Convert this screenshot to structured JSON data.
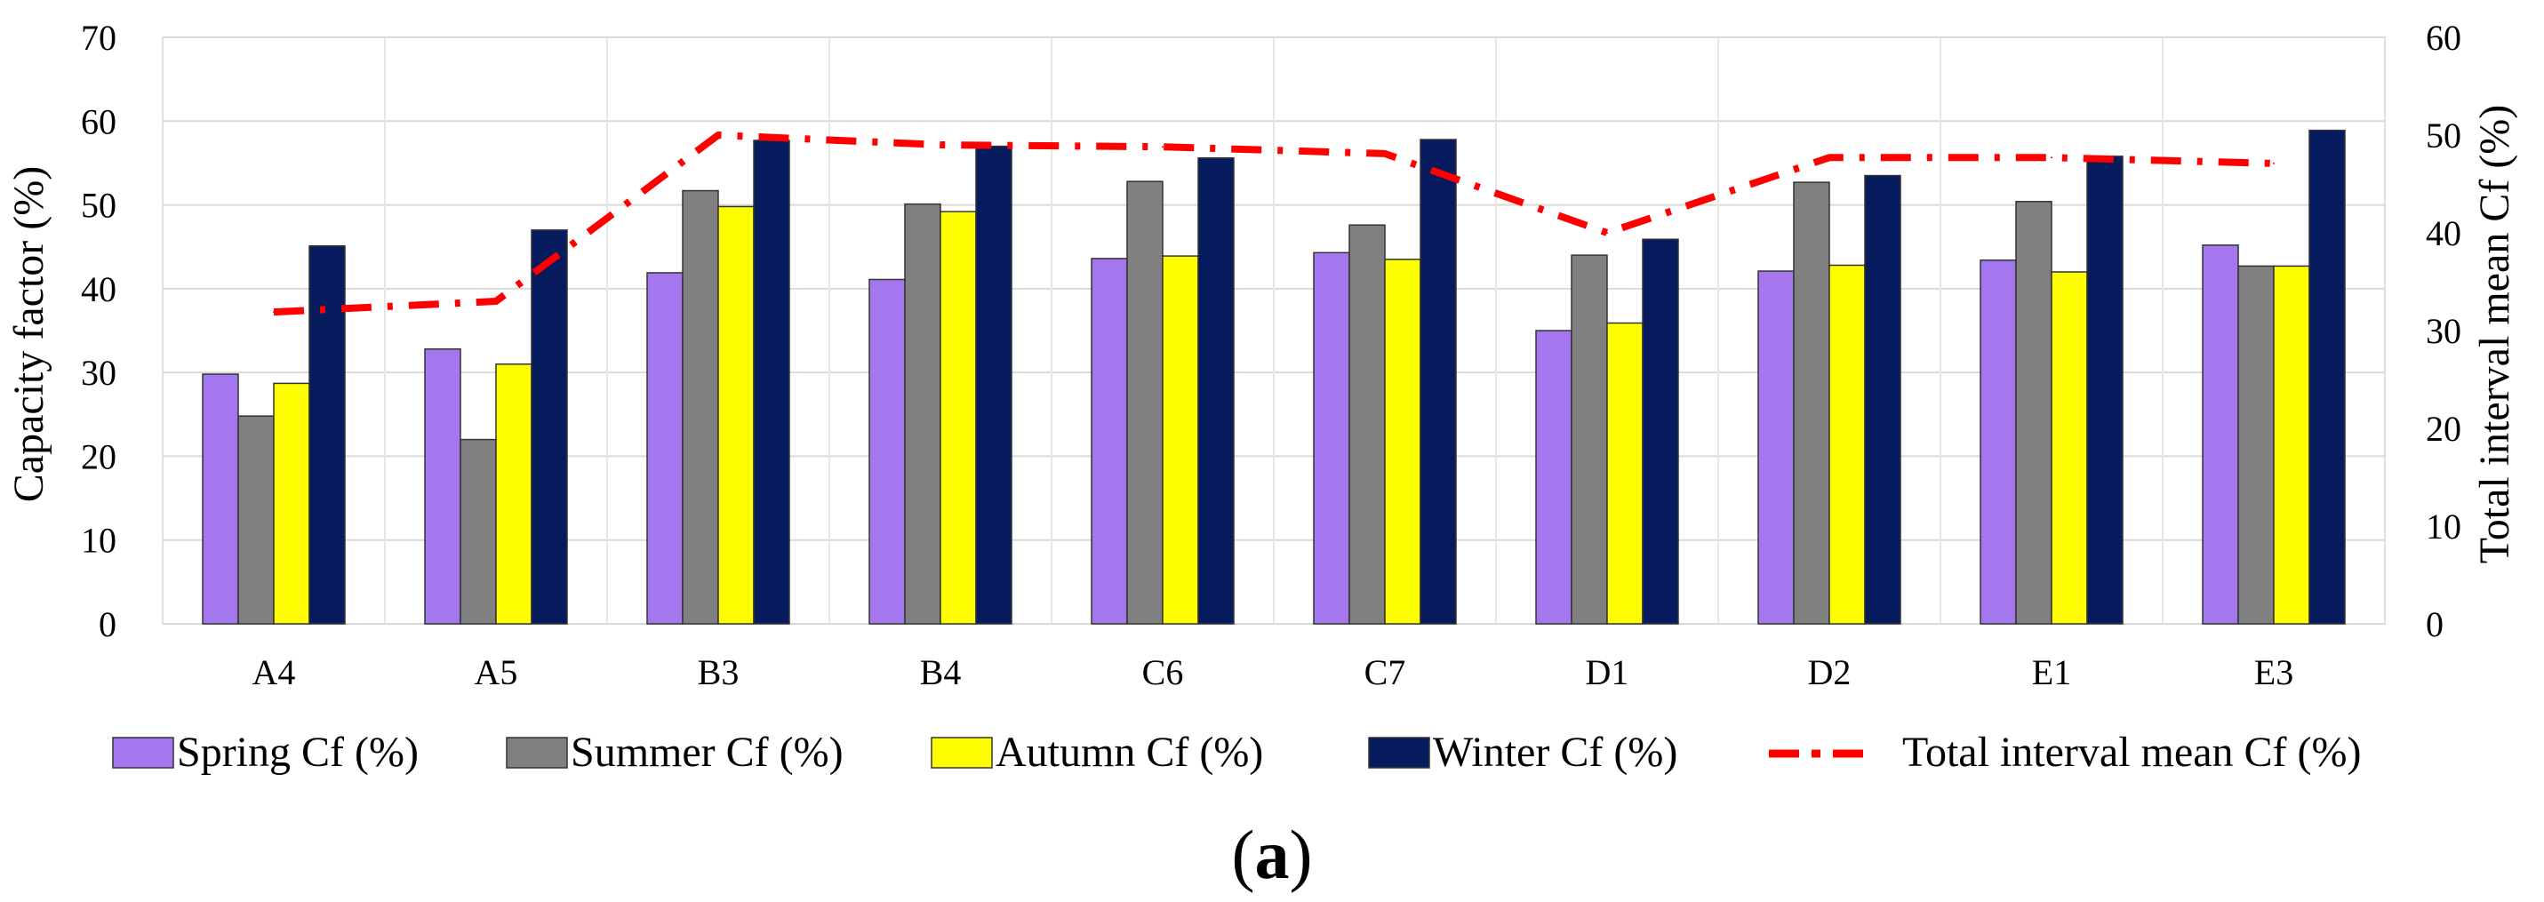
{
  "chart_data": {
    "type": "bar",
    "categories": [
      "A4",
      "A5",
      "B3",
      "B4",
      "C6",
      "C7",
      "D1",
      "D2",
      "E1",
      "E3"
    ],
    "series": [
      {
        "name": "Spring Cf (%)",
        "color": "#a577ef",
        "values": [
          29.8,
          32.8,
          41.9,
          41.1,
          43.6,
          44.3,
          35.0,
          42.1,
          43.4,
          45.2
        ]
      },
      {
        "name": "Summer Cf (%)",
        "color": "#808080",
        "values": [
          24.8,
          22.0,
          51.7,
          50.1,
          52.8,
          47.6,
          44.0,
          52.7,
          50.4,
          42.7
        ]
      },
      {
        "name": "Autumn Cf (%)",
        "color": "#ffff00",
        "values": [
          28.7,
          31.0,
          49.8,
          49.2,
          43.9,
          43.5,
          35.9,
          42.8,
          42.0,
          42.7
        ]
      },
      {
        "name": "Winter Cf (%)",
        "color": "#061a5e",
        "values": [
          45.1,
          47.0,
          57.7,
          57.0,
          55.6,
          57.8,
          45.9,
          53.5,
          55.8,
          58.9
        ]
      }
    ],
    "line_series": {
      "name": "Total interval mean Cf (%)",
      "color": "#ff0000",
      "axis": "right",
      "values": [
        31.9,
        33.0,
        50.0,
        49.0,
        48.8,
        48.1,
        40.0,
        47.7,
        47.7,
        47.1
      ]
    },
    "ylabel": "Capacity factor (%)",
    "ylabel_right": "Total interval mean Cf (%)",
    "ylim": [
      0,
      70
    ],
    "ylim_right": [
      0,
      60
    ],
    "yticks": [
      0,
      10,
      20,
      30,
      40,
      50,
      60,
      70
    ],
    "yticks_right": [
      0,
      10,
      20,
      30,
      40,
      50,
      60
    ],
    "legend_position": "bottom",
    "caption": "(a)"
  }
}
